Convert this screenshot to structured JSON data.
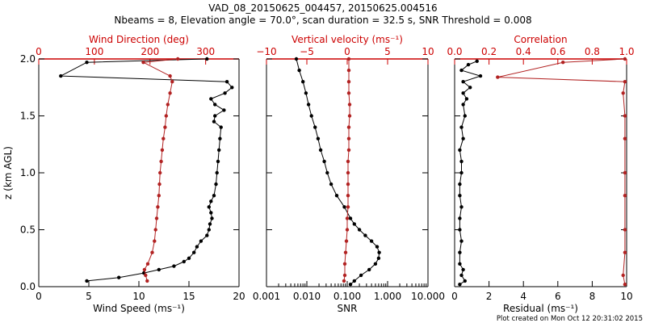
{
  "title": "VAD_08_20150625_004457, 20150625.004516",
  "subtitle": "Nbeams = 8, Elevation angle = 70.0°, scan duration = 32.5 s, SNR Threshold = 0.008",
  "footer": "Plot created on Mon Oct 12 20:31:02 2015",
  "colors": {
    "black_series": "#000000",
    "red_series": "#b22222",
    "red_axis": "#cc0000"
  },
  "chart_data": [
    {
      "type": "line",
      "ylabel": "z (km AGL)",
      "ylim": [
        0,
        2.0
      ],
      "yticks": [
        "0.0",
        "0.5",
        "1.0",
        "1.5",
        "2.0"
      ],
      "bottom_axis": {
        "label": "Wind Speed (ms⁻¹)",
        "range": [
          0,
          20
        ],
        "ticks": [
          "0",
          "5",
          "10",
          "15",
          "20"
        ]
      },
      "top_axis": {
        "label": "Wind Direction (deg)",
        "range": [
          0,
          360
        ],
        "ticks": [
          "0",
          "100",
          "200",
          "300"
        ]
      },
      "series": [
        {
          "axis": "bottom",
          "color": "#000000",
          "z": [
            0.05,
            0.08,
            0.12,
            0.15,
            0.18,
            0.22,
            0.25,
            0.3,
            0.35,
            0.4,
            0.45,
            0.5,
            0.55,
            0.6,
            0.65,
            0.7,
            0.75,
            0.8,
            0.9,
            1.0,
            1.1,
            1.2,
            1.3,
            1.4,
            1.45,
            1.5,
            1.55,
            1.6,
            1.65,
            1.7,
            1.75,
            1.8,
            1.85,
            1.97,
            2.0
          ],
          "x": [
            4.8,
            8.0,
            10.5,
            12.0,
            13.5,
            14.5,
            15.0,
            15.5,
            15.8,
            16.2,
            16.8,
            17.0,
            17.1,
            17.3,
            17.2,
            17.0,
            17.2,
            17.5,
            17.7,
            17.8,
            17.9,
            18.0,
            18.1,
            18.2,
            17.5,
            17.6,
            18.5,
            17.6,
            17.2,
            18.6,
            19.3,
            18.8,
            2.2,
            4.8,
            16.8
          ]
        },
        {
          "axis": "top",
          "color": "#b22222",
          "z": [
            0.05,
            0.1,
            0.15,
            0.2,
            0.3,
            0.4,
            0.5,
            0.6,
            0.7,
            0.8,
            0.9,
            1.0,
            1.1,
            1.2,
            1.3,
            1.4,
            1.5,
            1.6,
            1.7,
            1.8,
            1.85,
            1.97,
            2.0
          ],
          "x": [
            195,
            192,
            190,
            196,
            204,
            208,
            210,
            212,
            214,
            216,
            217,
            218,
            220,
            222,
            224,
            227,
            229,
            232,
            236,
            240,
            236,
            188,
            250
          ]
        }
      ]
    },
    {
      "type": "line",
      "bottom_axis": {
        "label": "SNR",
        "scale": "log",
        "range": [
          0.001,
          10
        ],
        "ticks": [
          "0.001",
          "0.010",
          "0.100",
          "1.000",
          "10.000"
        ]
      },
      "top_axis": {
        "label": "Vertical velocity (ms⁻¹)",
        "range": [
          -10,
          10
        ],
        "ticks": [
          "−10",
          "−5",
          "0",
          "5",
          "10"
        ]
      },
      "series": [
        {
          "axis": "bottom",
          "color": "#000000",
          "z": [
            0.02,
            0.05,
            0.1,
            0.15,
            0.2,
            0.25,
            0.3,
            0.35,
            0.4,
            0.45,
            0.5,
            0.55,
            0.6,
            0.7,
            0.8,
            0.9,
            1.0,
            1.1,
            1.2,
            1.3,
            1.4,
            1.5,
            1.6,
            1.7,
            1.8,
            1.9,
            2.0
          ],
          "x": [
            0.12,
            0.15,
            0.22,
            0.35,
            0.5,
            0.6,
            0.62,
            0.55,
            0.4,
            0.28,
            0.2,
            0.15,
            0.12,
            0.085,
            0.055,
            0.04,
            0.032,
            0.027,
            0.022,
            0.019,
            0.016,
            0.013,
            0.011,
            0.0095,
            0.008,
            0.0065,
            0.0055
          ]
        },
        {
          "axis": "top",
          "color": "#b22222",
          "z": [
            0.05,
            0.1,
            0.2,
            0.3,
            0.4,
            0.5,
            0.6,
            0.7,
            0.8,
            0.9,
            1.0,
            1.1,
            1.2,
            1.3,
            1.4,
            1.5,
            1.6,
            1.7,
            1.8,
            1.9,
            2.0
          ],
          "x": [
            -0.4,
            -0.3,
            -0.3,
            -0.2,
            -0.1,
            0.0,
            0.0,
            0.1,
            0.1,
            0.1,
            0.1,
            0.1,
            0.2,
            0.2,
            0.2,
            0.3,
            0.3,
            0.2,
            0.2,
            0.2,
            0.2
          ]
        }
      ]
    },
    {
      "type": "line",
      "bottom_axis": {
        "label": "Residual (ms⁻¹)",
        "range": [
          0,
          10
        ],
        "ticks": [
          "0",
          "2",
          "4",
          "6",
          "8",
          "10"
        ]
      },
      "top_axis": {
        "label": "Correlation",
        "range": [
          0,
          1.0
        ],
        "ticks": [
          "0.0",
          "0.2",
          "0.4",
          "0.6",
          "0.8",
          "1.0"
        ]
      },
      "series": [
        {
          "axis": "bottom",
          "color": "#000000",
          "z": [
            0.02,
            0.05,
            0.1,
            0.15,
            0.2,
            0.3,
            0.4,
            0.5,
            0.6,
            0.7,
            0.8,
            0.9,
            1.0,
            1.1,
            1.2,
            1.3,
            1.4,
            1.5,
            1.6,
            1.65,
            1.7,
            1.75,
            1.8,
            1.85,
            1.9,
            1.95,
            1.98
          ],
          "x": [
            0.3,
            0.6,
            0.4,
            0.5,
            0.3,
            0.3,
            0.4,
            0.3,
            0.3,
            0.4,
            0.3,
            0.3,
            0.4,
            0.4,
            0.3,
            0.5,
            0.4,
            0.6,
            0.5,
            0.7,
            0.5,
            0.9,
            0.5,
            1.5,
            0.4,
            0.8,
            1.3
          ]
        },
        {
          "axis": "top",
          "color": "#b22222",
          "z": [
            0.02,
            0.1,
            0.3,
            0.5,
            0.8,
            1.0,
            1.3,
            1.5,
            1.7,
            1.8,
            1.84,
            1.97,
            2.0
          ],
          "x": [
            0.99,
            0.98,
            0.99,
            0.99,
            0.99,
            0.99,
            0.99,
            0.99,
            0.98,
            0.99,
            0.25,
            0.63,
            0.99
          ]
        }
      ]
    }
  ]
}
